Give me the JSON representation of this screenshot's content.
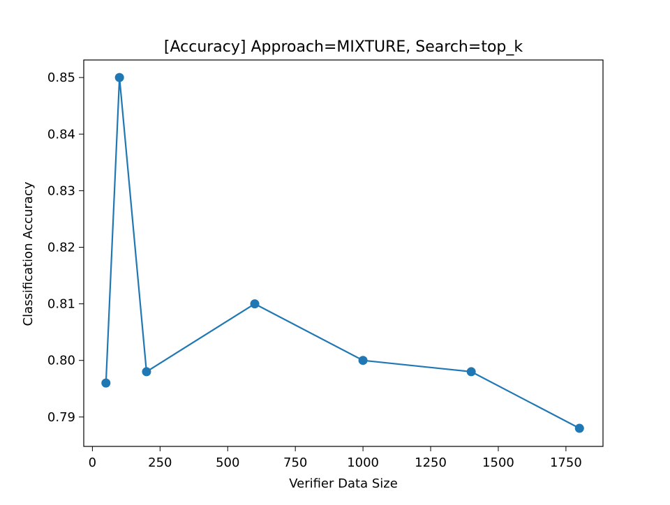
{
  "chart_data": {
    "type": "line",
    "title": "[Accuracy] Approach=MIXTURE, Search=top_k",
    "xlabel": "Verifier Data Size",
    "ylabel": "Classification Accuracy",
    "xlim": [
      -32,
      1887
    ],
    "ylim": [
      0.7848,
      0.8531
    ],
    "xticks": [
      0,
      250,
      500,
      750,
      1000,
      1250,
      1500,
      1750
    ],
    "xtick_labels": [
      "0",
      "250",
      "500",
      "750",
      "1000",
      "1250",
      "1500",
      "1750"
    ],
    "yticks": [
      0.79,
      0.8,
      0.81,
      0.82,
      0.83,
      0.84,
      0.85
    ],
    "ytick_labels": [
      "0.79",
      "0.80",
      "0.81",
      "0.82",
      "0.83",
      "0.84",
      "0.85"
    ],
    "grid": false,
    "series": [
      {
        "color": "#1f77b4",
        "marker": "circle",
        "x": [
          50,
          100,
          200,
          600,
          1000,
          1400,
          1800
        ],
        "y": [
          0.796,
          0.85,
          0.798,
          0.81,
          0.8,
          0.798,
          0.788
        ]
      }
    ]
  }
}
